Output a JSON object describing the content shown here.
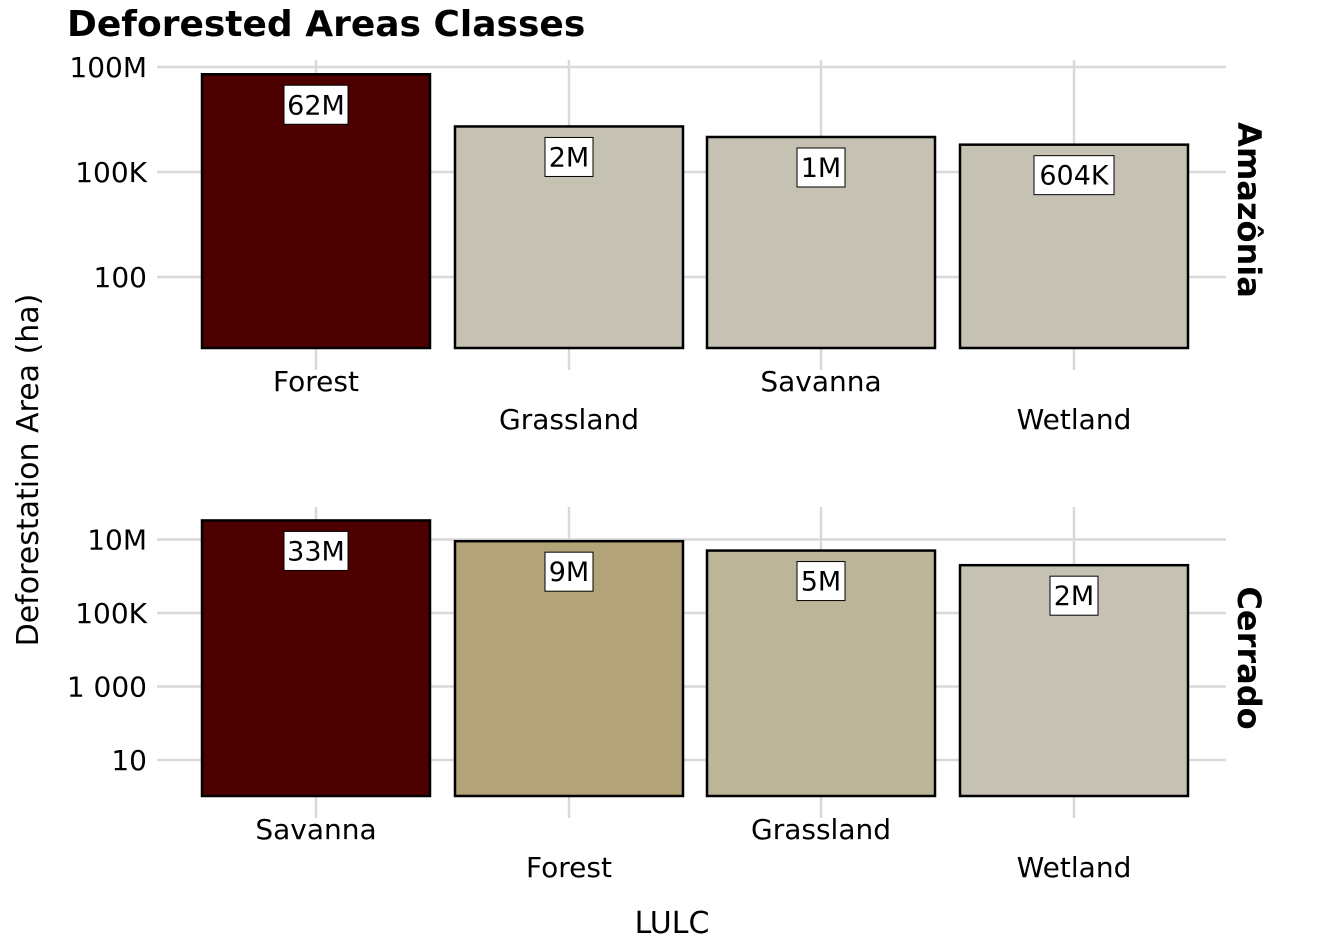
{
  "chart_data": {
    "type": "bar",
    "title": "Deforested Areas Classes",
    "xlabel": "LULC",
    "ylabel": "Deforestation Area (ha)",
    "y_scale": "log10",
    "grid": true,
    "facets": [
      {
        "name": "Amazônia",
        "categories": [
          "Forest",
          "Grassland",
          "Savanna",
          "Wetland"
        ],
        "values": [
          62000000,
          2000000,
          1000000,
          604000
        ],
        "labels": [
          "62M",
          "2M",
          "1M",
          "604K"
        ],
        "colors": [
          "#4d0000",
          "#c5c2b3",
          "#c5c2b3",
          "#c5c2b3"
        ],
        "y_ticks": [
          {
            "value": 100,
            "label": "100"
          },
          {
            "value": 100000,
            "label": "100K"
          },
          {
            "value": 100000000,
            "label": "100M"
          }
        ]
      },
      {
        "name": "Cerrado",
        "categories": [
          "Savanna",
          "Forest",
          "Grassland",
          "Wetland"
        ],
        "values": [
          33000000,
          9000000,
          5000000,
          2000000
        ],
        "labels": [
          "33M",
          "9M",
          "5M",
          "2M"
        ],
        "colors": [
          "#4d0000",
          "#b3a379",
          "#bdb598",
          "#c5c2b3"
        ],
        "y_ticks": [
          {
            "value": 10,
            "label": "10"
          },
          {
            "value": 1000,
            "label": "1 000"
          },
          {
            "value": 100000,
            "label": "100K"
          },
          {
            "value": 10000000,
            "label": "10M"
          }
        ]
      }
    ]
  }
}
